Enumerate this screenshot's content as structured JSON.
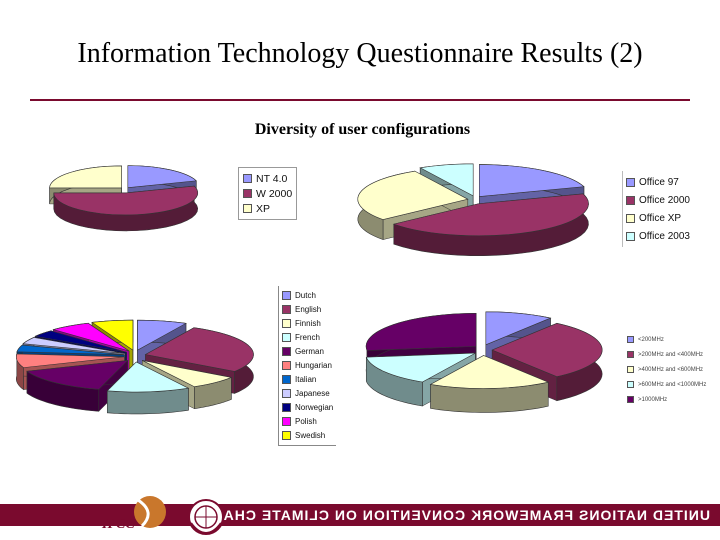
{
  "slide": {
    "title": "Information Technology Questionnaire Results (2)",
    "subtitle": "Diversity of user configurations",
    "footer": "UNITED NATIONS FRAMEWORK CONVENTION ON CLIMATE CHANGE",
    "logo_text": "IPCC"
  },
  "colors": {
    "accent": "#7a0a2e",
    "periwinkle": "#9999ff",
    "plum": "#993366",
    "cream": "#ffffcc",
    "light_cyan": "#ccffff",
    "dark_purple": "#660066",
    "salmon": "#ff8080",
    "blue": "#0066cc",
    "light_lilac": "#ccccff",
    "navy": "#000080",
    "magenta": "#ff00ff",
    "yellow": "#ffff00"
  },
  "chart_data": [
    {
      "type": "pie",
      "categories": [
        "NT 4.0",
        "W 2000",
        "XP"
      ],
      "values": [
        20,
        55,
        25
      ],
      "colors": [
        "#9999ff",
        "#993366",
        "#ffffcc"
      ],
      "legend": "right"
    },
    {
      "type": "pie",
      "categories": [
        "Office 97",
        "Office 2000",
        "Office XP",
        "Office 2003"
      ],
      "values": [
        20,
        44,
        28,
        8
      ],
      "colors": [
        "#9999ff",
        "#993366",
        "#ffffcc",
        "#ccffff"
      ],
      "legend": "right"
    },
    {
      "type": "pie",
      "categories": [
        "Dutch",
        "English",
        "Finnish",
        "French",
        "German",
        "Hungarian",
        "Italian",
        "Japanese",
        "Norwegian",
        "Polish",
        "Swedish"
      ],
      "values": [
        6,
        22,
        6,
        10,
        12,
        6,
        3,
        3,
        3,
        5,
        5
      ],
      "colors": [
        "#9999ff",
        "#993366",
        "#ffffcc",
        "#ccffff",
        "#660066",
        "#ff8080",
        "#0066cc",
        "#ccccff",
        "#000080",
        "#ff00ff",
        "#ffff00"
      ],
      "legend": "left"
    },
    {
      "type": "pie",
      "categories": [
        "<200MHz",
        ">200MHz and <400MHz",
        ">400MHz and <600MHz",
        ">600MHz and <1000MHz",
        ">1000MHz"
      ],
      "values": [
        10,
        30,
        18,
        15,
        27
      ],
      "colors": [
        "#9999ff",
        "#993366",
        "#ffffcc",
        "#ccffff",
        "#660066"
      ],
      "legend": "right"
    }
  ]
}
